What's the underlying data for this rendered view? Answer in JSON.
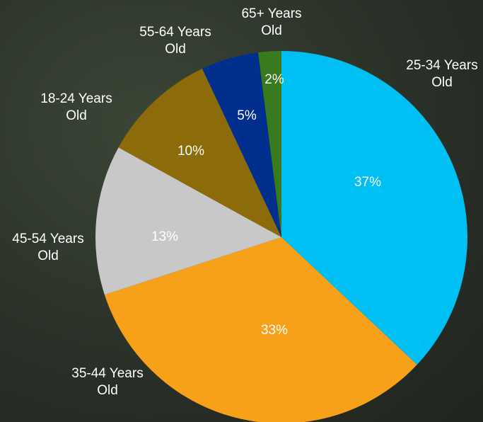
{
  "chart_data": {
    "type": "pie",
    "categories": [
      "25-34 Years Old",
      "35-44 Years Old",
      "45-54 Years Old",
      "18-24 Years Old",
      "55-64 Years Old",
      "65+ Years Old"
    ],
    "values": [
      37,
      33,
      13,
      10,
      5,
      2
    ],
    "value_labels": [
      "37%",
      "33%",
      "13%",
      "10%",
      "5%",
      "2%"
    ],
    "colors": [
      "#00bff3",
      "#f7a11a",
      "#c8c8c8",
      "#8b6b0a",
      "#002f8e",
      "#3a7a1e"
    ]
  }
}
